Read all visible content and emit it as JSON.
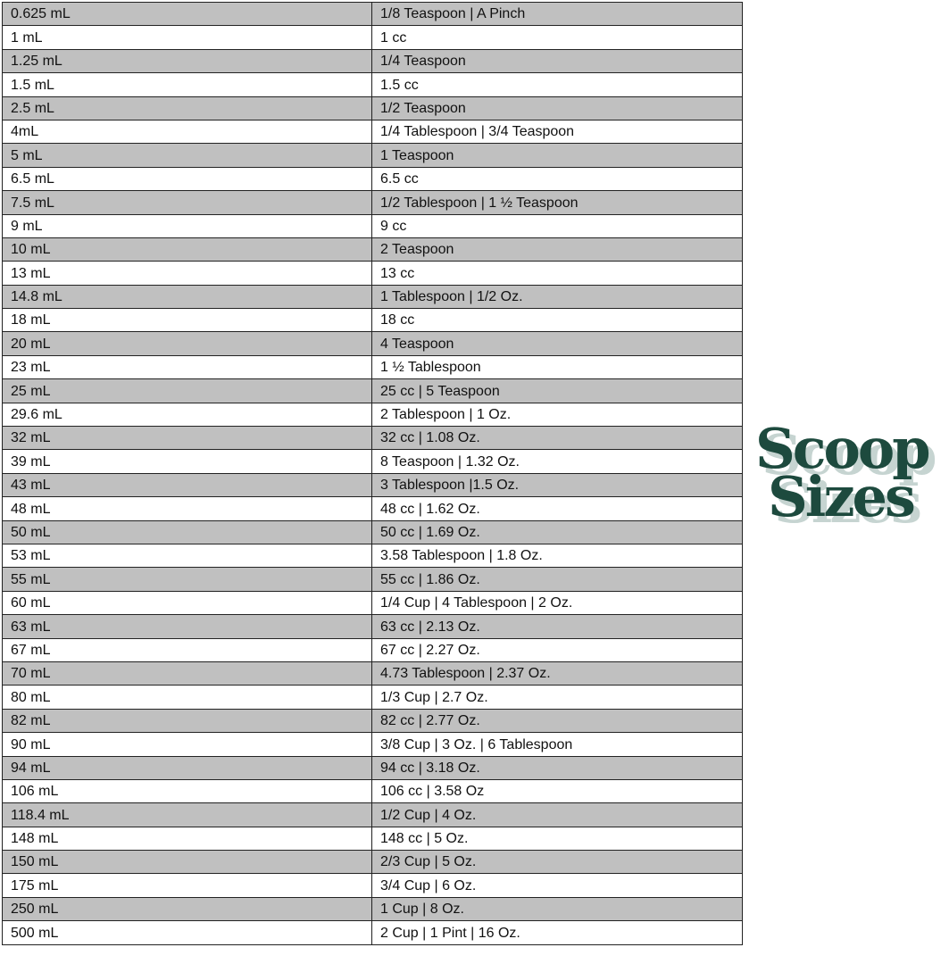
{
  "rows": [
    [
      "0.625 mL",
      "1/8 Teaspoon | A Pinch"
    ],
    [
      "1 mL",
      "1 cc"
    ],
    [
      "1.25 mL",
      "1/4 Teaspoon"
    ],
    [
      "1.5 mL",
      "1.5 cc"
    ],
    [
      "2.5 mL",
      "1/2 Teaspoon"
    ],
    [
      "4mL",
      "1/4 Tablespoon | 3/4 Teaspoon"
    ],
    [
      "5 mL",
      "1 Teaspoon"
    ],
    [
      "6.5 mL",
      "6.5 cc"
    ],
    [
      "7.5 mL",
      "1/2 Tablespoon | 1 ½ Teaspoon"
    ],
    [
      "9 mL",
      "9 cc"
    ],
    [
      "10 mL",
      "2 Teaspoon"
    ],
    [
      "13 mL",
      "13 cc"
    ],
    [
      "14.8 mL",
      "1 Tablespoon | 1/2 Oz."
    ],
    [
      "18 mL",
      "18 cc"
    ],
    [
      "20 mL",
      "4 Teaspoon"
    ],
    [
      "23 mL",
      "1 ½ Tablespoon"
    ],
    [
      "25 mL",
      "25 cc | 5 Teaspoon"
    ],
    [
      "29.6 mL",
      "2 Tablespoon | 1 Oz."
    ],
    [
      "32 mL",
      "32 cc | 1.08 Oz."
    ],
    [
      "39 mL",
      "8 Teaspoon | 1.32 Oz."
    ],
    [
      "43 mL",
      "3 Tablespoon |1.5 Oz."
    ],
    [
      "48 mL",
      "48 cc | 1.62 Oz."
    ],
    [
      "50 mL",
      "50 cc | 1.69 Oz."
    ],
    [
      "53 mL",
      "3.58 Tablespoon | 1.8 Oz."
    ],
    [
      "55 mL",
      "55 cc | 1.86 Oz."
    ],
    [
      "60 mL",
      "1/4 Cup | 4 Tablespoon | 2 Oz."
    ],
    [
      "63 mL",
      "63 cc | 2.13 Oz."
    ],
    [
      "67 mL",
      "67 cc | 2.27 Oz."
    ],
    [
      "70 mL",
      "4.73 Tablespoon | 2.37 Oz."
    ],
    [
      "80 mL",
      "1/3 Cup | 2.7 Oz."
    ],
    [
      "82 mL",
      "82 cc | 2.77 Oz."
    ],
    [
      "90 mL",
      "3/8 Cup | 3 Oz. | 6 Tablespoon"
    ],
    [
      "94 mL",
      "94 cc | 3.18 Oz."
    ],
    [
      "106 mL",
      "106 cc | 3.58 Oz"
    ],
    [
      "118.4 mL",
      "1/2 Cup | 4 Oz."
    ],
    [
      "148 mL",
      "148 cc | 5 Oz."
    ],
    [
      "150 mL",
      "2/3 Cup | 5 Oz."
    ],
    [
      "175 mL",
      "3/4 Cup | 6 Oz."
    ],
    [
      "250 mL",
      "1 Cup | 8 Oz."
    ],
    [
      "500 mL",
      "2 Cup | 1 Pint | 16 Oz."
    ]
  ],
  "logo": {
    "line1": "Scoop",
    "line2": "Sizes",
    "color": "#1d4a3e",
    "shadow_color": "#c6d4d1"
  },
  "colors": {
    "row_stripe": "#c0c0c0",
    "border": "#222222"
  }
}
